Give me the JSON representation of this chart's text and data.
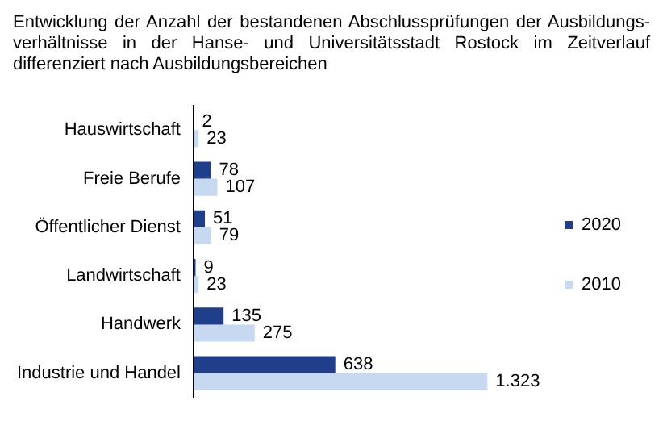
{
  "chart_data": {
    "type": "bar",
    "orientation": "horizontal",
    "title": "Entwicklung der Anzahl der bestandenen Abschlussprüfungen der Ausbildungs-verhältnisse in der Hanse- und Universitätsstadt Rostock im Zeitverlauf differenziert nach Ausbildungsbereichen",
    "categories": [
      "Hauswirtschaft",
      "Freie Berufe",
      "Öffentlicher Dienst",
      "Landwirtschaft",
      "Handwerk",
      "Industrie und Handel"
    ],
    "series": [
      {
        "name": "2020",
        "color": "#1f3f8a",
        "values": [
          2,
          78,
          51,
          9,
          135,
          638
        ],
        "value_labels": [
          "2",
          "78",
          "51",
          "9",
          "135",
          "638"
        ]
      },
      {
        "name": "2010",
        "color": "#c6d9f0",
        "values": [
          23,
          107,
          79,
          23,
          275,
          1323
        ],
        "value_labels": [
          "23",
          "107",
          "79",
          "23",
          "275",
          "1.323"
        ]
      }
    ],
    "legend": "right"
  }
}
